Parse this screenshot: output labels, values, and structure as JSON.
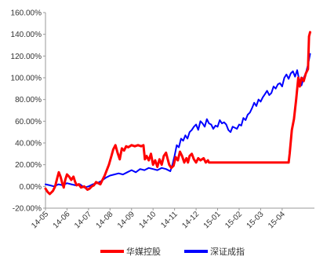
{
  "chart_data": {
    "type": "line",
    "title": "",
    "xlabel": "",
    "ylabel": "",
    "ylim": [
      -20,
      160
    ],
    "y_ticks": [
      -20,
      0,
      20,
      40,
      60,
      80,
      100,
      120,
      140,
      160
    ],
    "y_tick_labels": [
      "-20.00%",
      "0.00%",
      "20.00%",
      "40.00%",
      "60.00%",
      "80.00%",
      "100.00%",
      "120.00%",
      "140.00%",
      "160.00%"
    ],
    "x_tick_labels": [
      "14-05",
      "14-06",
      "14-07",
      "14-08",
      "14-09",
      "14-10",
      "14-11",
      "14-12",
      "15-01",
      "15-02",
      "15-03",
      "15-04"
    ],
    "xlim": [
      0,
      12.5
    ],
    "legend_position": "bottom",
    "grid": false,
    "series": [
      {
        "name": "华媒控股",
        "color": "#ff0000",
        "points": [
          [
            0.0,
            -2
          ],
          [
            0.1,
            -5
          ],
          [
            0.2,
            -7
          ],
          [
            0.35,
            -4
          ],
          [
            0.45,
            0
          ],
          [
            0.55,
            8
          ],
          [
            0.62,
            13
          ],
          [
            0.7,
            9
          ],
          [
            0.78,
            3
          ],
          [
            0.85,
            -1
          ],
          [
            0.92,
            6
          ],
          [
            1.0,
            11
          ],
          [
            1.1,
            9
          ],
          [
            1.2,
            6
          ],
          [
            1.3,
            9
          ],
          [
            1.38,
            4
          ],
          [
            1.45,
            1
          ],
          [
            1.55,
            2
          ],
          [
            1.65,
            -1
          ],
          [
            1.8,
            0
          ],
          [
            1.95,
            -3
          ],
          [
            2.05,
            -2
          ],
          [
            2.15,
            0
          ],
          [
            2.25,
            1
          ],
          [
            2.35,
            4
          ],
          [
            2.45,
            3
          ],
          [
            2.55,
            2
          ],
          [
            2.65,
            6
          ],
          [
            2.75,
            10
          ],
          [
            2.85,
            15
          ],
          [
            2.95,
            20
          ],
          [
            3.05,
            27
          ],
          [
            3.15,
            34
          ],
          [
            3.25,
            38
          ],
          [
            3.35,
            31
          ],
          [
            3.45,
            25
          ],
          [
            3.55,
            35
          ],
          [
            3.65,
            33
          ],
          [
            3.75,
            37
          ],
          [
            3.85,
            36
          ],
          [
            4.0,
            38
          ],
          [
            4.15,
            37
          ],
          [
            4.3,
            38
          ],
          [
            4.45,
            37
          ],
          [
            4.55,
            38
          ],
          [
            4.62,
            25
          ],
          [
            4.7,
            28
          ],
          [
            4.8,
            24
          ],
          [
            4.9,
            30
          ],
          [
            5.0,
            20
          ],
          [
            5.1,
            24
          ],
          [
            5.2,
            18
          ],
          [
            5.3,
            25
          ],
          [
            5.4,
            20
          ],
          [
            5.5,
            28
          ],
          [
            5.6,
            31
          ],
          [
            5.68,
            25
          ],
          [
            5.75,
            20
          ],
          [
            5.85,
            17
          ],
          [
            5.95,
            19
          ],
          [
            6.05,
            27
          ],
          [
            6.15,
            24
          ],
          [
            6.25,
            32
          ],
          [
            6.35,
            28
          ],
          [
            6.45,
            22
          ],
          [
            6.55,
            26
          ],
          [
            6.62,
            22
          ],
          [
            6.7,
            28
          ],
          [
            6.8,
            30
          ],
          [
            6.9,
            25
          ],
          [
            7.0,
            22
          ],
          [
            7.1,
            26
          ],
          [
            7.2,
            24
          ],
          [
            7.35,
            26
          ],
          [
            7.45,
            22
          ],
          [
            7.55,
            24
          ],
          [
            7.6,
            22
          ],
          [
            8.5,
            22
          ],
          [
            9.5,
            22
          ],
          [
            10.5,
            22
          ],
          [
            11.3,
            22
          ],
          [
            11.35,
            30
          ],
          [
            11.45,
            52
          ],
          [
            11.55,
            62
          ],
          [
            11.65,
            80
          ],
          [
            11.75,
            100
          ],
          [
            11.82,
            92
          ],
          [
            11.9,
            100
          ],
          [
            12.0,
            97
          ],
          [
            12.1,
            104
          ],
          [
            12.2,
            108
          ],
          [
            12.25,
            138
          ],
          [
            12.3,
            142
          ]
        ]
      },
      {
        "name": "深证成指",
        "color": "#0000ff",
        "points": [
          [
            0.0,
            2
          ],
          [
            0.2,
            1
          ],
          [
            0.4,
            0
          ],
          [
            0.6,
            2
          ],
          [
            0.8,
            1
          ],
          [
            1.0,
            3
          ],
          [
            1.2,
            2
          ],
          [
            1.4,
            1
          ],
          [
            1.6,
            2
          ],
          [
            1.8,
            -1
          ],
          [
            2.0,
            0
          ],
          [
            2.2,
            2
          ],
          [
            2.4,
            3
          ],
          [
            2.6,
            5
          ],
          [
            2.8,
            8
          ],
          [
            3.0,
            10
          ],
          [
            3.2,
            11
          ],
          [
            3.4,
            12
          ],
          [
            3.6,
            11
          ],
          [
            3.8,
            13
          ],
          [
            4.0,
            15
          ],
          [
            4.2,
            13
          ],
          [
            4.4,
            16
          ],
          [
            4.6,
            15
          ],
          [
            4.8,
            17
          ],
          [
            5.0,
            16
          ],
          [
            5.2,
            15
          ],
          [
            5.4,
            17
          ],
          [
            5.6,
            16
          ],
          [
            5.8,
            14
          ],
          [
            5.9,
            20
          ],
          [
            6.0,
            28
          ],
          [
            6.1,
            38
          ],
          [
            6.2,
            36
          ],
          [
            6.3,
            44
          ],
          [
            6.4,
            42
          ],
          [
            6.5,
            47
          ],
          [
            6.6,
            44
          ],
          [
            6.7,
            50
          ],
          [
            6.8,
            52
          ],
          [
            6.9,
            55
          ],
          [
            7.0,
            57
          ],
          [
            7.1,
            52
          ],
          [
            7.2,
            60
          ],
          [
            7.3,
            58
          ],
          [
            7.4,
            55
          ],
          [
            7.5,
            62
          ],
          [
            7.6,
            58
          ],
          [
            7.7,
            57
          ],
          [
            7.8,
            53
          ],
          [
            7.9,
            56
          ],
          [
            8.0,
            55
          ],
          [
            8.1,
            61
          ],
          [
            8.2,
            58
          ],
          [
            8.3,
            59
          ],
          [
            8.4,
            57
          ],
          [
            8.5,
            52
          ],
          [
            8.6,
            50
          ],
          [
            8.7,
            55
          ],
          [
            8.8,
            54
          ],
          [
            8.9,
            53
          ],
          [
            9.0,
            57
          ],
          [
            9.1,
            56
          ],
          [
            9.2,
            63
          ],
          [
            9.3,
            61
          ],
          [
            9.4,
            66
          ],
          [
            9.5,
            68
          ],
          [
            9.6,
            72
          ],
          [
            9.7,
            77
          ],
          [
            9.8,
            74
          ],
          [
            9.9,
            80
          ],
          [
            10.0,
            78
          ],
          [
            10.1,
            82
          ],
          [
            10.2,
            85
          ],
          [
            10.3,
            88
          ],
          [
            10.4,
            84
          ],
          [
            10.5,
            86
          ],
          [
            10.6,
            92
          ],
          [
            10.7,
            90
          ],
          [
            10.8,
            94
          ],
          [
            10.9,
            95
          ],
          [
            11.0,
            92
          ],
          [
            11.1,
            100
          ],
          [
            11.2,
            103
          ],
          [
            11.3,
            99
          ],
          [
            11.4,
            104
          ],
          [
            11.5,
            106
          ],
          [
            11.6,
            101
          ],
          [
            11.7,
            107
          ],
          [
            11.8,
            97
          ],
          [
            11.9,
            93
          ],
          [
            12.0,
            100
          ],
          [
            12.1,
            104
          ],
          [
            12.2,
            112
          ],
          [
            12.3,
            122
          ]
        ]
      }
    ]
  }
}
